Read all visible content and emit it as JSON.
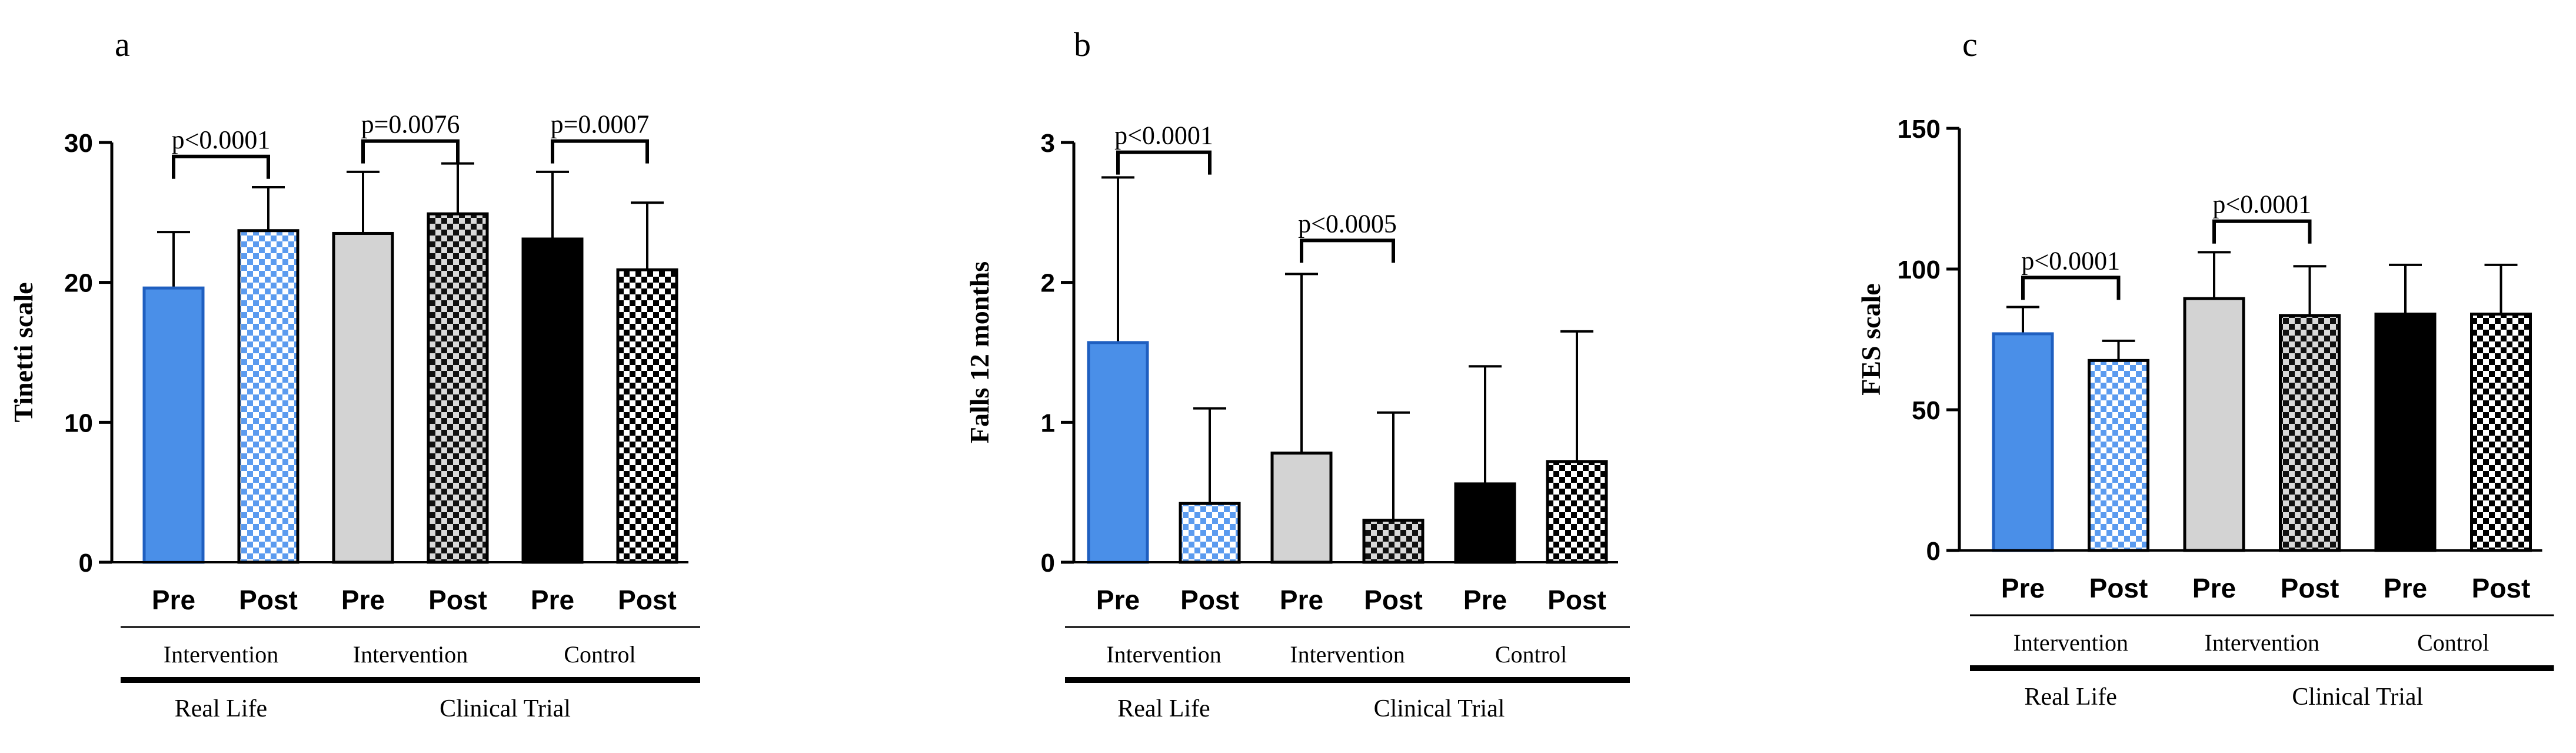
{
  "colors": {
    "blue": "#4a8fe8",
    "blue_dark": "#1f5fc0",
    "pattern_blue": "#5b9bef",
    "grey": "#d3d3d3",
    "black": "#000000"
  },
  "chart_data": [
    {
      "type": "bar",
      "panel_label": "a",
      "ylabel": "Tinetti scale",
      "ylim": [
        0,
        30
      ],
      "yticks": [
        0,
        10,
        20,
        30
      ],
      "categories": [
        "Pre",
        "Post",
        "Pre",
        "Post",
        "Pre",
        "Post"
      ],
      "fills": [
        "blue",
        "blue-check",
        "grey",
        "black-check",
        "black",
        "black-check-white"
      ],
      "values": [
        19.6,
        23.7,
        23.5,
        24.9,
        23.1,
        20.9
      ],
      "errors": [
        23.6,
        26.8,
        27.9,
        28.5,
        27.9,
        25.7
      ],
      "sub_groups": [
        {
          "label": "Intervention",
          "from": 0,
          "to": 1
        },
        {
          "label": "Intervention",
          "from": 2,
          "to": 3
        },
        {
          "label": "Control",
          "from": 4,
          "to": 5
        }
      ],
      "main_groups": [
        {
          "label": "Real Life",
          "from": 0,
          "to": 1
        },
        {
          "label": "Clinical Trial",
          "from": 2,
          "to": 5
        }
      ],
      "comparisons": [
        {
          "from": 0,
          "to": 1,
          "y": 29,
          "label": "p<0.0001"
        },
        {
          "from": 2,
          "to": 3,
          "y": 30.1,
          "label": "p=0.0076"
        },
        {
          "from": 4,
          "to": 5,
          "y": 30.1,
          "label": "p=0.0007"
        }
      ]
    },
    {
      "type": "bar",
      "panel_label": "b",
      "ylabel": "Falls 12 months",
      "ylim": [
        0,
        3
      ],
      "yticks": [
        0,
        1,
        2,
        3
      ],
      "categories": [
        "Pre",
        "Post",
        "Pre",
        "Post",
        "Pre",
        "Post"
      ],
      "fills": [
        "blue",
        "blue-check",
        "grey",
        "black-check",
        "black",
        "black-check-white"
      ],
      "values": [
        1.57,
        0.42,
        0.78,
        0.3,
        0.56,
        0.72
      ],
      "errors": [
        2.75,
        1.1,
        2.06,
        1.07,
        1.4,
        1.65
      ],
      "sub_groups": [
        {
          "label": "Intervention",
          "from": 0,
          "to": 1
        },
        {
          "label": "Intervention",
          "from": 2,
          "to": 3
        },
        {
          "label": "Control",
          "from": 4,
          "to": 5
        }
      ],
      "main_groups": [
        {
          "label": "Real Life",
          "from": 0,
          "to": 1
        },
        {
          "label": "Clinical Trial",
          "from": 2,
          "to": 5
        }
      ],
      "comparisons": [
        {
          "from": 0,
          "to": 1,
          "y": 2.93,
          "label": "p<0.0001"
        },
        {
          "from": 2,
          "to": 3,
          "y": 2.3,
          "label": "p<0.0005"
        }
      ]
    },
    {
      "type": "bar",
      "panel_label": "c",
      "ylabel": "FES scale",
      "ylim": [
        0,
        150
      ],
      "yticks": [
        0,
        50,
        100,
        150
      ],
      "categories": [
        "Pre",
        "Post",
        "Pre",
        "Post",
        "Pre",
        "Post"
      ],
      "fills": [
        "blue",
        "blue-check",
        "grey",
        "black-check",
        "black",
        "black-check-white"
      ],
      "values": [
        77,
        67.5,
        89.5,
        83.5,
        84,
        84
      ],
      "errors": [
        86.5,
        74.5,
        106,
        101,
        101.5,
        101.5
      ],
      "sub_groups": [
        {
          "label": "Intervention",
          "from": 0,
          "to": 1
        },
        {
          "label": "Intervention",
          "from": 2,
          "to": 3
        },
        {
          "label": "Control",
          "from": 4,
          "to": 5
        }
      ],
      "main_groups": [
        {
          "label": "Real Life",
          "from": 0,
          "to": 1
        },
        {
          "label": "Clinical Trial",
          "from": 2,
          "to": 5
        }
      ],
      "comparisons": [
        {
          "from": 0,
          "to": 1,
          "y": 97,
          "label": "p<0.0001"
        },
        {
          "from": 2,
          "to": 3,
          "y": 117,
          "label": "p<0.0001"
        }
      ]
    }
  ]
}
